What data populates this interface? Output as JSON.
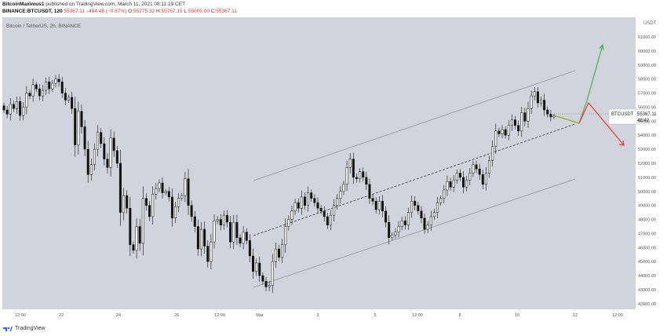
{
  "header": {
    "author": "BitcoinMaximus1",
    "published_text": "published on TradingView.com, March 11, 2021 08:11:19 CET",
    "symbol_line": "BINANCE:BTCUSDT, 120",
    "last_price": "55367.11",
    "change": "↓484.48 (−0.87%)",
    "o_label": "O:",
    "o_value": "55275.32",
    "h_label": "H:",
    "h_value": "55767.15",
    "l_label": "L:",
    "l_value": "55005.00",
    "c_label": "C:",
    "c_value": "55367.11"
  },
  "chart_data": {
    "type": "candlestick",
    "title": "Bitcoin / TetherUS, 2h, BINANCE",
    "y_unit": "USDT",
    "ylim": [
      41600,
      62400
    ],
    "y_ticks": [
      "42000.00",
      "43000.00",
      "44000.00",
      "45000.00",
      "46000.00",
      "47000.00",
      "48000.00",
      "49000.00",
      "50000.00",
      "51000.00",
      "52000.00",
      "53000.00",
      "54000.00",
      "55000.00",
      "56000.00",
      "57000.00",
      "58000.00",
      "59000.00",
      "60000.00",
      "61000.00"
    ],
    "x_ticks": [
      "12:00",
      "22",
      "24",
      "26",
      "12:00",
      "Mar",
      "3",
      "5",
      "12:00",
      "8",
      "10",
      "12",
      "12:00"
    ],
    "price_label": {
      "symbol": "BTCUSDT",
      "price": "55367.11",
      "countdown": "48:42"
    },
    "closes": [
      55800,
      55500,
      56200,
      55900,
      56400,
      55400,
      56000,
      57000,
      56800,
      57600,
      57300,
      56800,
      57200,
      57800,
      57300,
      57700,
      58000,
      57800,
      57000,
      56500,
      56700,
      55900,
      53300,
      55700,
      54600,
      53000,
      51200,
      51900,
      53000,
      54200,
      53400,
      52300,
      51700,
      53800,
      52900,
      52000,
      48500,
      49700,
      48800,
      46200,
      45800,
      47500,
      46300,
      49500,
      49000,
      48200,
      49800,
      50200,
      50600,
      49900,
      50000,
      49600,
      48100,
      48900,
      49500,
      49700,
      50900,
      49000,
      48200,
      47500,
      45900,
      47300,
      46100,
      45000,
      46400,
      47900,
      48000,
      47600,
      48300,
      47800,
      46400,
      47800,
      46700,
      46300,
      47100,
      46500,
      45400,
      44300,
      44900,
      44000,
      43600,
      43200,
      43300,
      45000,
      45900,
      45300,
      46200,
      47500,
      48000,
      48600,
      49200,
      48800,
      49600,
      49000,
      49900,
      49500,
      49200,
      48800,
      48600,
      48200,
      47600,
      48300,
      49000,
      49500,
      50000,
      50500,
      51700,
      52300,
      51000,
      50900,
      51400,
      51000,
      50500,
      49500,
      49300,
      48700,
      49300,
      48600,
      47800,
      46700,
      46900,
      47100,
      47500,
      47900,
      47600,
      48500,
      49300,
      49000,
      48600,
      48100,
      47300,
      47600,
      48200,
      48500,
      49200,
      49500,
      50100,
      50700,
      50300,
      50800,
      51300,
      51000,
      50300,
      50800,
      51300,
      51900,
      51600,
      51200,
      50500,
      51300,
      52200,
      53200,
      54300,
      54100,
      54400,
      54000,
      54700,
      55100,
      54700,
      54300,
      55600,
      55000,
      55900,
      56800,
      57100,
      56300,
      56500,
      55800,
      55500,
      55300,
      55367
    ]
  },
  "annotations": {
    "forecast_bull_color": "#4caf50",
    "forecast_bear_color": "#e53935",
    "forecast_mid_color": "#9aa81e"
  },
  "footer": {
    "brand": "TradingView",
    "logo_icon": "tradingview-logo-icon"
  }
}
